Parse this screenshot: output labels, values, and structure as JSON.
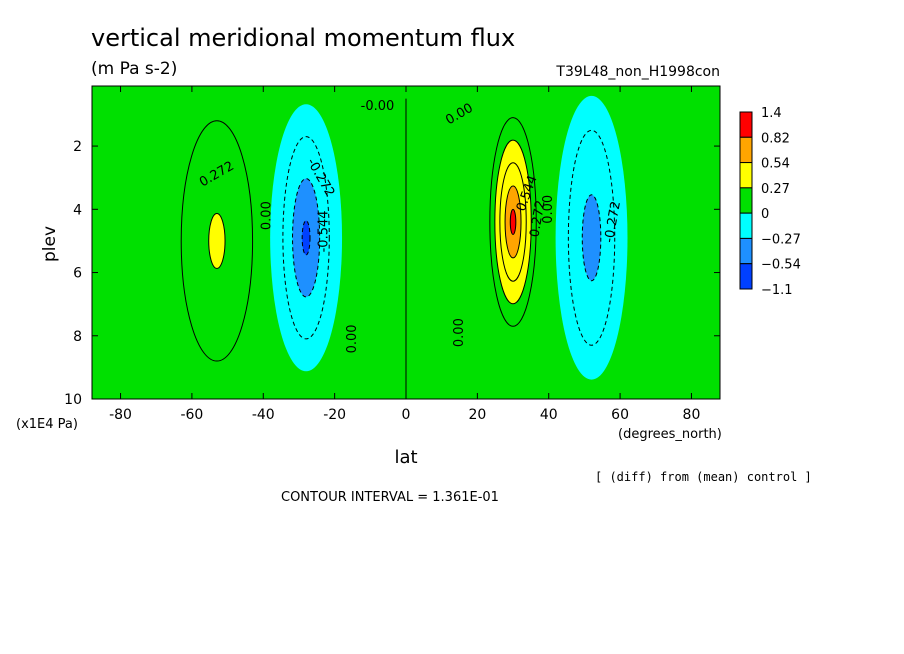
{
  "chart_data": {
    "type": "heatmap",
    "title": "vertical meridional momentum flux",
    "subtitle": "(m Pa s-2)",
    "run_label": "T39L48_non_H1998con",
    "xlabel": "lat",
    "x_units": "(degrees_north)",
    "ylabel": "plev",
    "y_units": "(x1E4 Pa)",
    "xlim": [
      -88,
      88
    ],
    "ylim": [
      10,
      0.1
    ],
    "x_ticks": [
      -80,
      -60,
      -40,
      -20,
      0,
      20,
      40,
      60,
      80
    ],
    "y_ticks": [
      2,
      4,
      6,
      8,
      10
    ],
    "colorbar": {
      "labels": [
        "1.4",
        "0.82",
        "0.54",
        "0.27",
        "0",
        "−0.27",
        "−0.54",
        "−1.1"
      ],
      "colors": [
        "#ff0000",
        "#ffa500",
        "#ffff00",
        "#00e000",
        "#00ffff",
        "#1e90ff",
        "#0040ff"
      ]
    },
    "contour_labels": [
      {
        "text": "0.272",
        "lat": -53,
        "plev": 2.9,
        "rot": -30
      },
      {
        "text": "0.00",
        "lat": -39,
        "plev": 4.2,
        "rot": -90
      },
      {
        "text": "-0.272",
        "lat": -24,
        "plev": 3.0,
        "rot": 60
      },
      {
        "text": "-0.544",
        "lat": -23,
        "plev": 4.7,
        "rot": -90
      },
      {
        "text": "0.00",
        "lat": -15,
        "plev": 8.1,
        "rot": -90
      },
      {
        "text": "-0.00",
        "lat": -8,
        "plev": 0.75,
        "rot": 0
      },
      {
        "text": "0.00",
        "lat": 15,
        "plev": 1.0,
        "rot": -30
      },
      {
        "text": "0.00",
        "lat": 15,
        "plev": 7.9,
        "rot": -90
      },
      {
        "text": "0.544",
        "lat": 34,
        "plev": 3.5,
        "rot": -70
      },
      {
        "text": "0.272",
        "lat": 37,
        "plev": 4.3,
        "rot": -80
      },
      {
        "text": "0.00",
        "lat": 40,
        "plev": 4.0,
        "rot": -90
      },
      {
        "text": "-0.272",
        "lat": 58,
        "plev": 4.4,
        "rot": -80
      }
    ],
    "blobs": [
      {
        "lat": -53,
        "plev": 5.0,
        "rx": 10,
        "ry": 3.8,
        "value": 0.3
      },
      {
        "lat": -28,
        "plev": 4.9,
        "rx": 6.5,
        "ry": 3.2,
        "value": -0.6
      },
      {
        "lat": 30,
        "plev": 4.4,
        "rx": 6.5,
        "ry": 3.3,
        "value": 1.2
      },
      {
        "lat": 52,
        "plev": 4.9,
        "rx": 6.5,
        "ry": 3.4,
        "value": -0.4
      }
    ],
    "footer_note": "[ (diff) from (mean) control ]",
    "contour_interval": "CONTOUR INTERVAL = 1.361E-01"
  }
}
